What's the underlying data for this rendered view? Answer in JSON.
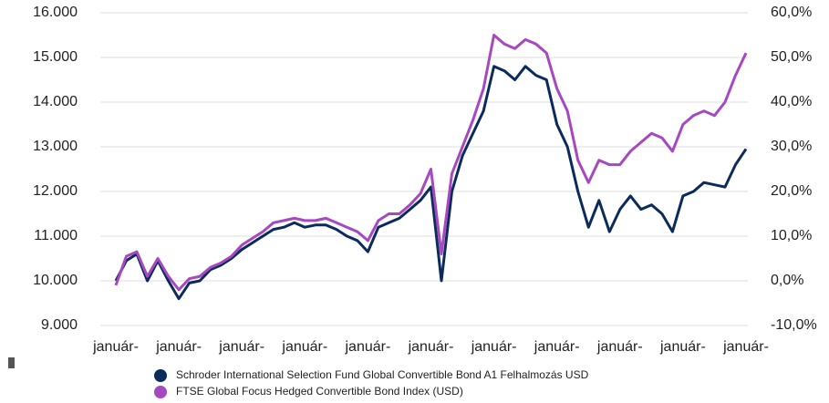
{
  "chart_data": {
    "type": "line",
    "categories": [
      "január-",
      null,
      null,
      null,
      null,
      null,
      "január-",
      null,
      null,
      null,
      null,
      null,
      "január-",
      null,
      null,
      null,
      null,
      null,
      "január-",
      null,
      null,
      null,
      null,
      null,
      "január-",
      null,
      null,
      null,
      null,
      null,
      "január-",
      null,
      null,
      null,
      null,
      null,
      "január-",
      null,
      null,
      null,
      null,
      null,
      "január-",
      null,
      null,
      null,
      null,
      null,
      "január-",
      null,
      null,
      null,
      null,
      null,
      "január-",
      null,
      null,
      null,
      null,
      null,
      "január-"
    ],
    "series": [
      {
        "name": "Schroder International Selection Fund Global Convertible Bond A1 Felhalmozás USD",
        "color": "#0b2b5c",
        "values": [
          10000,
          10450,
          10600,
          10000,
          10450,
          10000,
          9600,
          9950,
          10000,
          10250,
          10350,
          10500,
          10700,
          10850,
          11000,
          11150,
          11200,
          11300,
          11200,
          11250,
          11250,
          11150,
          11000,
          10900,
          10650,
          11200,
          11300,
          11400,
          11600,
          11800,
          12100,
          10000,
          12000,
          12800,
          13300,
          13800,
          14800,
          14700,
          14500,
          14800,
          14600,
          14500,
          13500,
          13000,
          12000,
          11200,
          11800,
          11100,
          11600,
          11900,
          11600,
          11700,
          11500,
          11100,
          11900,
          12000,
          12200,
          12150,
          12100,
          12600,
          12950
        ]
      },
      {
        "name": "FTSE Global Focus Hedged Convertible Bond Index (USD)",
        "color": "#a649c0",
        "values": [
          9900,
          10550,
          10650,
          10100,
          10500,
          10100,
          9800,
          10050,
          10100,
          10300,
          10400,
          10550,
          10800,
          10950,
          11100,
          11300,
          11350,
          11400,
          11350,
          11350,
          11400,
          11300,
          11200,
          11100,
          10900,
          11350,
          11500,
          11500,
          11700,
          11950,
          12500,
          10600,
          12400,
          13000,
          13600,
          14300,
          15500,
          15300,
          15200,
          15400,
          15300,
          15100,
          14300,
          13800,
          12700,
          12200,
          12700,
          12600,
          12600,
          12900,
          13100,
          13300,
          13200,
          12900,
          13500,
          13700,
          13800,
          13700,
          14000,
          14600,
          15100
        ]
      }
    ],
    "ylim": [
      9000,
      16000
    ],
    "yticks": [
      {
        "value": 9000,
        "label": "9.000"
      },
      {
        "value": 10000,
        "label": "10.000"
      },
      {
        "value": 11000,
        "label": "11.000"
      },
      {
        "value": 12000,
        "label": "12.000"
      },
      {
        "value": 13000,
        "label": "13.000"
      },
      {
        "value": 14000,
        "label": "14.000"
      },
      {
        "value": 15000,
        "label": "15.000"
      },
      {
        "value": 16000,
        "label": "16.000"
      }
    ],
    "y2lim": [
      -10,
      60
    ],
    "y2ticks": [
      {
        "value": -10,
        "label": "-10,0%"
      },
      {
        "value": 0,
        "label": "0,0%"
      },
      {
        "value": 10,
        "label": "10,0%"
      },
      {
        "value": 20,
        "label": "20,0%"
      },
      {
        "value": 30,
        "label": "30,0%"
      },
      {
        "value": 40,
        "label": "40,0%"
      },
      {
        "value": 50,
        "label": "50,0%"
      },
      {
        "value": 60,
        "label": "60,0%"
      }
    ],
    "grid": true
  }
}
